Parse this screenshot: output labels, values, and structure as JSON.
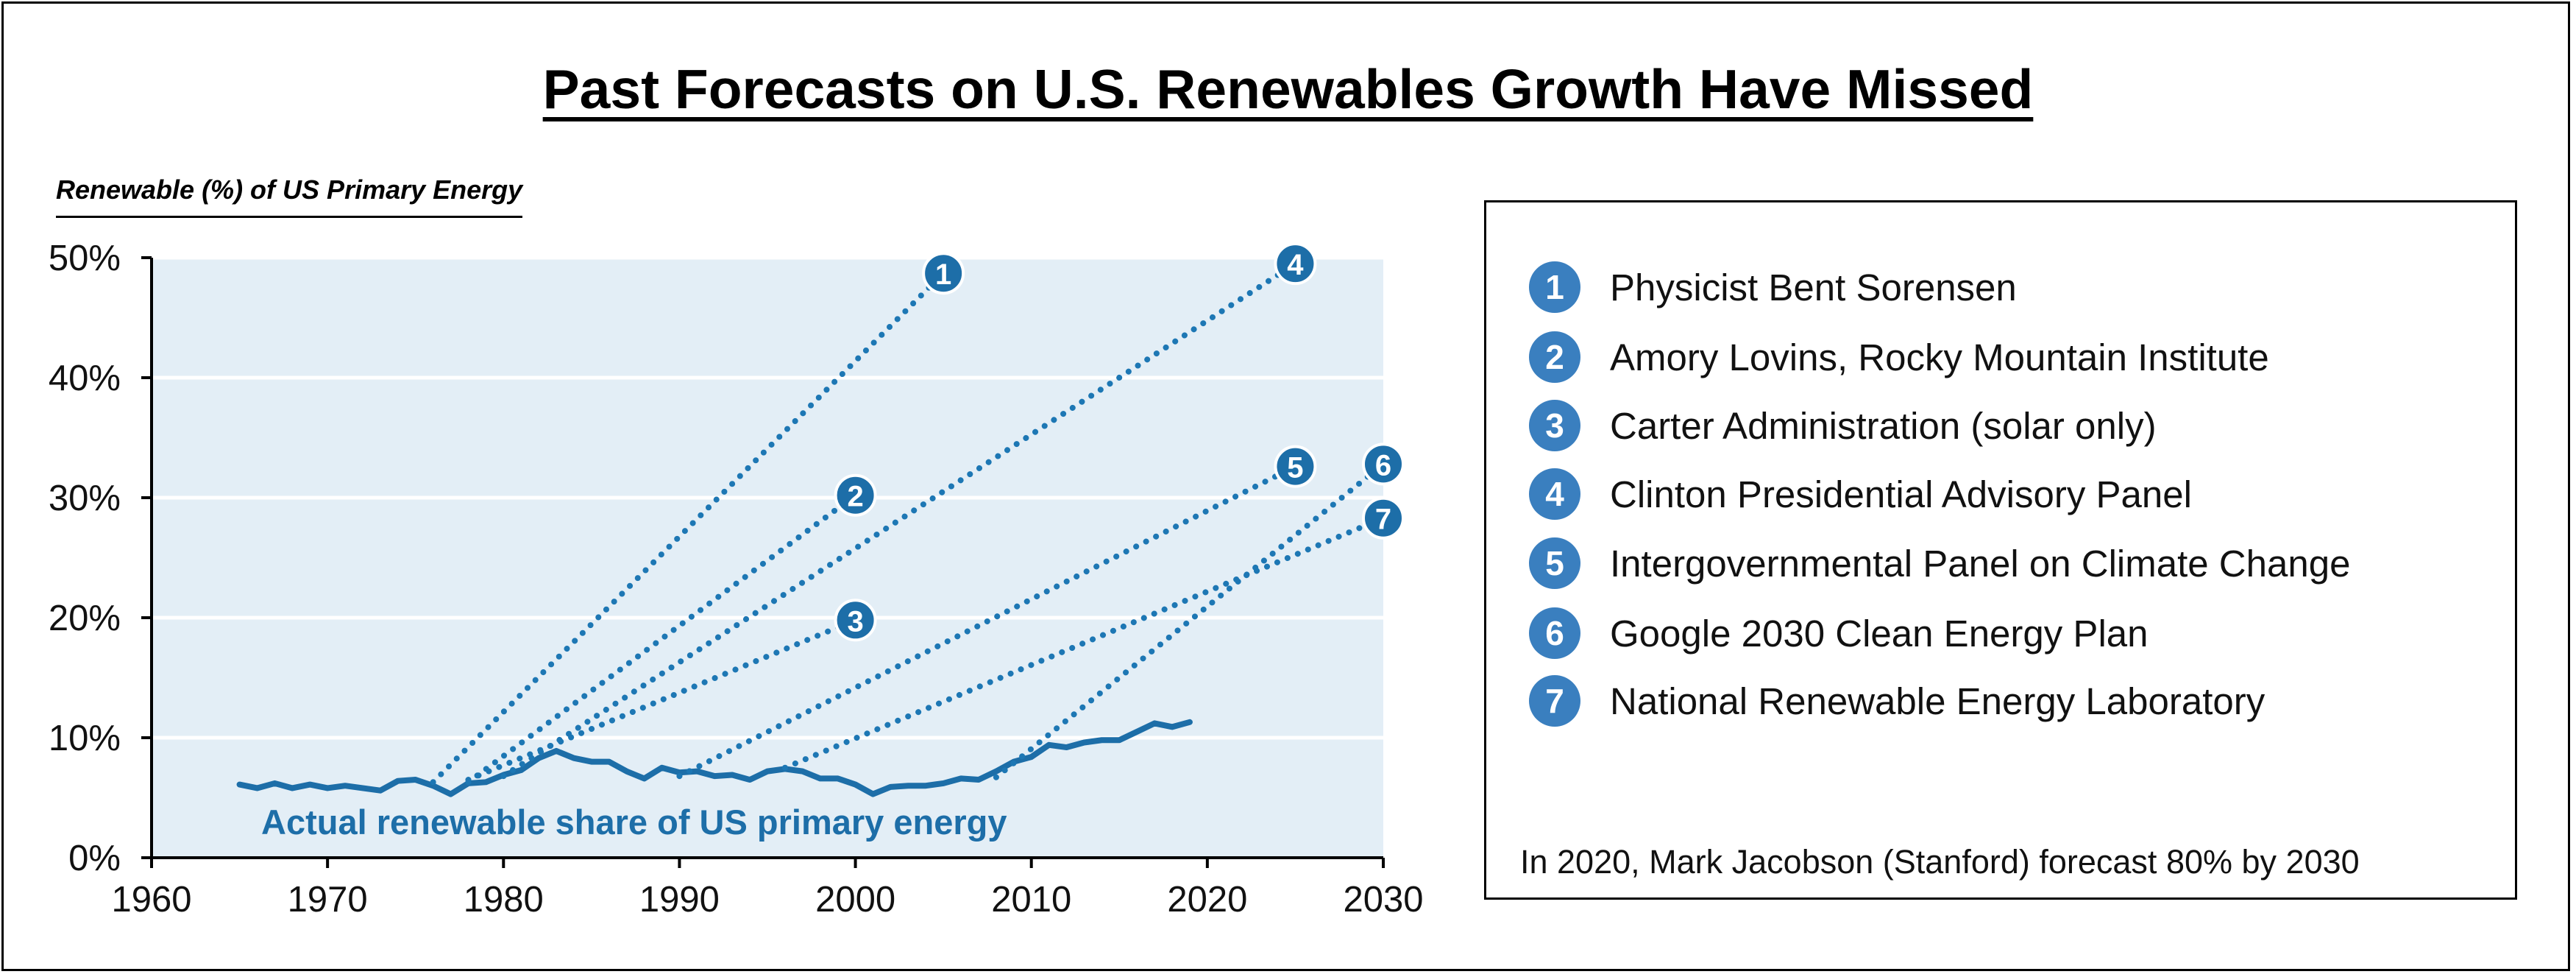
{
  "title": "Past Forecasts on U.S. Renewables Growth Have Missed",
  "chart_data": {
    "type": "line",
    "title": "Past Forecasts on U.S. Renewables Growth Have Missed",
    "ylabel": "Renewable (%) of US Primary Energy",
    "xlabel": "",
    "xlim": [
      1960,
      2030
    ],
    "ylim": [
      0,
      50
    ],
    "x_ticks": [
      1960,
      1970,
      1980,
      1990,
      2000,
      2010,
      2020,
      2030
    ],
    "y_ticks": [
      0,
      10,
      20,
      30,
      40,
      50
    ],
    "y_tick_labels": [
      "0%",
      "10%",
      "20%",
      "30%",
      "40%",
      "50%"
    ],
    "grid": "horizontal",
    "plot_background": "#e3eef6",
    "colors": {
      "actual": "#1d6ea8",
      "forecast": "#1d77b4",
      "badge": "#1d6ea8"
    },
    "actual_label": "Actual renewable share of US primary energy",
    "actual": {
      "x": [
        1965,
        1966,
        1967,
        1968,
        1969,
        1970,
        1971,
        1972,
        1973,
        1974,
        1975,
        1976,
        1977,
        1978,
        1979,
        1980,
        1981,
        1982,
        1983,
        1984,
        1985,
        1986,
        1987,
        1988,
        1989,
        1990,
        1991,
        1992,
        1993,
        1994,
        1995,
        1996,
        1997,
        1998,
        1999,
        2000,
        2001,
        2002,
        2003,
        2004,
        2005,
        2006,
        2007,
        2008,
        2009,
        2010,
        2011,
        2012,
        2013,
        2014,
        2015,
        2016,
        2017,
        2018,
        2019
      ],
      "y": [
        6.1,
        5.8,
        6.2,
        5.8,
        6.1,
        5.8,
        6.0,
        5.8,
        5.6,
        6.4,
        6.5,
        6.0,
        5.3,
        6.2,
        6.3,
        6.9,
        7.3,
        8.3,
        8.9,
        8.3,
        8.0,
        8.0,
        7.2,
        6.6,
        7.5,
        7.1,
        7.2,
        6.8,
        6.9,
        6.5,
        7.2,
        7.4,
        7.2,
        6.6,
        6.6,
        6.1,
        5.3,
        5.9,
        6.0,
        6.0,
        6.2,
        6.6,
        6.5,
        7.2,
        8.0,
        8.4,
        9.4,
        9.2,
        9.6,
        9.8,
        9.8,
        10.5,
        11.2,
        10.9,
        11.3
      ]
    },
    "forecasts": [
      {
        "id": "1",
        "x": [
          1976,
          2005
        ],
        "y": [
          6.3,
          48.7
        ]
      },
      {
        "id": "2",
        "x": [
          1978,
          2000
        ],
        "y": [
          6.3,
          30.2
        ]
      },
      {
        "id": "3",
        "x": [
          1978,
          2000
        ],
        "y": [
          6.5,
          19.8
        ]
      },
      {
        "id": "4",
        "x": [
          1980,
          2025
        ],
        "y": [
          6.8,
          49.5
        ]
      },
      {
        "id": "5",
        "x": [
          1990,
          2025
        ],
        "y": [
          6.8,
          32.6
        ]
      },
      {
        "id": "6",
        "x": [
          2008,
          2030
        ],
        "y": [
          6.7,
          32.8
        ]
      },
      {
        "id": "7",
        "x": [
          1996,
          2030
        ],
        "y": [
          7.5,
          28.3
        ]
      }
    ]
  },
  "legend": {
    "items": [
      {
        "number": "1",
        "label": "Physicist Bent Sorensen"
      },
      {
        "number": "2",
        "label": "Amory Lovins, Rocky Mountain Institute"
      },
      {
        "number": "3",
        "label": "Carter Administration (solar only)"
      },
      {
        "number": "4",
        "label": "Clinton Presidential Advisory Panel"
      },
      {
        "number": "5",
        "label": "Intergovernmental Panel on Climate Change"
      },
      {
        "number": "6",
        "label": "Google 2030 Clean Energy Plan"
      },
      {
        "number": "7",
        "label": "National Renewable Energy Laboratory"
      }
    ],
    "note": "In 2020, Mark Jacobson (Stanford) forecast 80% by 2030"
  }
}
